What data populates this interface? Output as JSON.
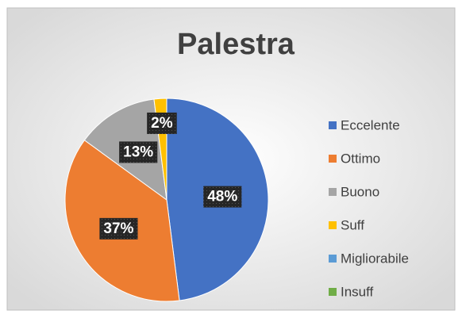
{
  "chart_data": {
    "type": "pie",
    "title": "Palestra",
    "categories": [
      "Eccelente",
      "Ottimo",
      "Buono",
      "Suff",
      "Migliorabile",
      "Insuff"
    ],
    "values": [
      48,
      37,
      13,
      2,
      0,
      0
    ],
    "value_labels": [
      "48%",
      "37%",
      "13%",
      "2%",
      null,
      null
    ],
    "colors": [
      "#4472c4",
      "#ed7d31",
      "#a5a5a5",
      "#ffc000",
      "#5b9bd5",
      "#70ad47"
    ],
    "legend": "right"
  }
}
